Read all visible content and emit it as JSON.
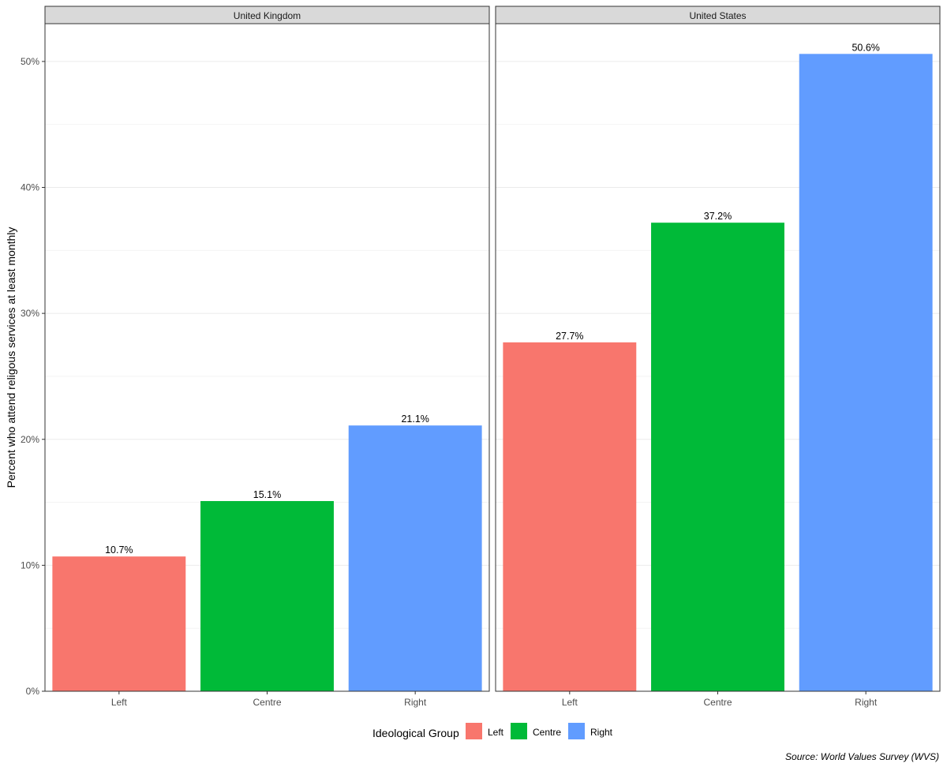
{
  "chart_data": {
    "type": "bar",
    "facets": [
      {
        "name": "United Kingdom",
        "categories": [
          "Left",
          "Centre",
          "Right"
        ],
        "values": [
          10.7,
          15.1,
          21.1
        ],
        "labels": [
          "10.7%",
          "15.1%",
          "21.1%"
        ]
      },
      {
        "name": "United States",
        "categories": [
          "Left",
          "Centre",
          "Right"
        ],
        "values": [
          27.7,
          37.2,
          50.6
        ],
        "labels": [
          "27.7%",
          "37.2%",
          "50.6%"
        ]
      }
    ],
    "ylabel": "Percent who attend religous services at least monthly",
    "ylim": [
      0,
      53
    ],
    "yticks": [
      0,
      10,
      20,
      30,
      40,
      50
    ],
    "ytick_labels": [
      "0%",
      "10%",
      "20%",
      "30%",
      "40%",
      "50%"
    ],
    "grid": true,
    "legend": {
      "title": "Ideological Group",
      "position": "bottom",
      "items": [
        {
          "label": "Left",
          "color": "#F8766D"
        },
        {
          "label": "Centre",
          "color": "#00BA38"
        },
        {
          "label": "Right",
          "color": "#619CFF"
        }
      ]
    },
    "caption": "Source: World Values Survey (WVS)"
  }
}
